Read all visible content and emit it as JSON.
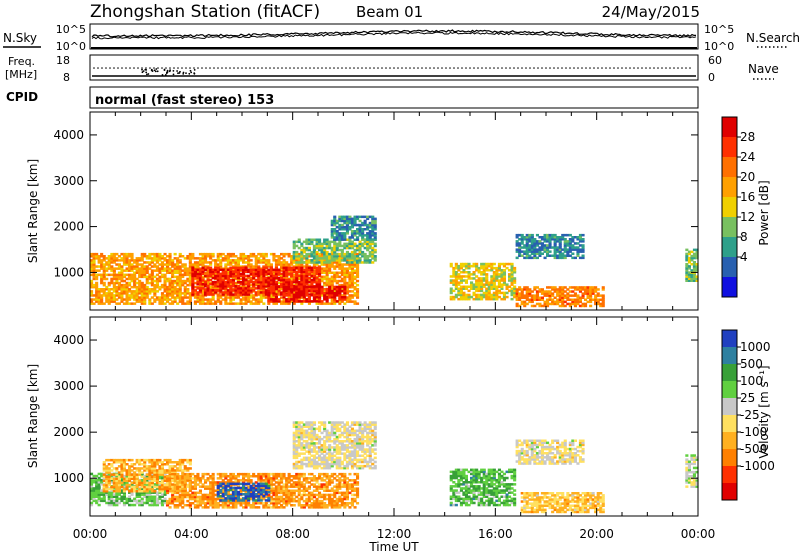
{
  "header": {
    "station": "Zhongshan Station (fitACF)",
    "beam": "Beam 01",
    "date": "24/May/2015"
  },
  "noise_panel": {
    "left_label": "N.Sky",
    "right_label": "N.Search",
    "left_ticks": [
      "10^5",
      "10^0"
    ],
    "right_ticks": [
      "10^5",
      "10^0"
    ]
  },
  "freq_panel": {
    "left_label_1": "Freq.",
    "left_label_2": "[MHz]",
    "right_label": "Nave",
    "left_ticks": [
      "18",
      "8"
    ],
    "right_ticks": [
      "60",
      "0"
    ]
  },
  "cpid_panel": {
    "label": "CPID",
    "text": "normal (fast stereo) 153"
  },
  "time_axis": {
    "title": "Time UT",
    "ticks": [
      "00:00",
      "04:00",
      "08:00",
      "12:00",
      "16:00",
      "20:00",
      "00:00"
    ]
  },
  "power_colorbar": {
    "title": "Power [dB]",
    "ticks": [
      "28",
      "24",
      "20",
      "16",
      "12",
      "8",
      "4"
    ],
    "colors": [
      "#e00000",
      "#ff3000",
      "#ff7000",
      "#ffa000",
      "#f0d000",
      "#78c060",
      "#2ea08a",
      "#2860b0",
      "#1010e0"
    ]
  },
  "velocity_colorbar": {
    "title": "Velocity [m s⁻¹]",
    "ticks": [
      "1000",
      "500",
      "100",
      "25",
      "-25",
      "-100",
      "-500",
      "-1000"
    ],
    "colors": [
      "#2040c0",
      "#2e80a0",
      "#38a038",
      "#60d040",
      "#c8c8c8",
      "#ffe060",
      "#ffb020",
      "#ff8000",
      "#ff3000",
      "#e00000"
    ]
  },
  "chart_data": [
    {
      "type": "heatmap",
      "title": "",
      "xlabel": "Time UT",
      "ylabel": "Slant Range [km]",
      "xlim": [
        0,
        24
      ],
      "ylim": [
        180,
        4500
      ],
      "yticks": [
        "1000",
        "2000",
        "3000",
        "4000"
      ],
      "colorbar_label": "Power [dB]",
      "color_range": [
        0,
        32
      ],
      "regions": [
        {
          "t": [
            0.0,
            10.5
          ],
          "r": [
            300,
            1400
          ],
          "value": 20
        },
        {
          "t": [
            4.0,
            9.0
          ],
          "r": [
            500,
            1100
          ],
          "value": 28
        },
        {
          "t": [
            7.0,
            10.0
          ],
          "r": [
            350,
            700
          ],
          "value": 30
        },
        {
          "t": [
            8.0,
            11.2
          ],
          "r": [
            1200,
            1700
          ],
          "value": 12
        },
        {
          "t": [
            9.5,
            11.2
          ],
          "r": [
            1700,
            2200
          ],
          "value": 8
        },
        {
          "t": [
            14.2,
            16.8
          ],
          "r": [
            400,
            1200
          ],
          "value": 16
        },
        {
          "t": [
            16.8,
            19.5
          ],
          "r": [
            1300,
            1800
          ],
          "value": 8
        },
        {
          "t": [
            16.8,
            20.3
          ],
          "r": [
            250,
            700
          ],
          "value": 22
        },
        {
          "t": [
            23.5,
            24.0
          ],
          "r": [
            800,
            1500
          ],
          "value": 12
        }
      ]
    },
    {
      "type": "heatmap",
      "title": "",
      "xlabel": "Time UT",
      "ylabel": "Slant Range [km]",
      "xlim": [
        0,
        24
      ],
      "ylim": [
        180,
        4500
      ],
      "yticks": [
        "1000",
        "2000",
        "3000",
        "4000"
      ],
      "colorbar_label": "Velocity [m s⁻¹]",
      "color_range": [
        -1000,
        1000
      ],
      "regions": [
        {
          "t": [
            0.0,
            3.0
          ],
          "r": [
            400,
            1100
          ],
          "value": 300
        },
        {
          "t": [
            0.5,
            4.0
          ],
          "r": [
            700,
            1400
          ],
          "value": -300
        },
        {
          "t": [
            3.0,
            10.5
          ],
          "r": [
            350,
            1100
          ],
          "value": -400
        },
        {
          "t": [
            5.0,
            7.0
          ],
          "r": [
            500,
            900
          ],
          "value": 800
        },
        {
          "t": [
            8.0,
            11.2
          ],
          "r": [
            1200,
            2200
          ],
          "value": 0
        },
        {
          "t": [
            14.2,
            16.8
          ],
          "r": [
            400,
            1200
          ],
          "value": 400
        },
        {
          "t": [
            16.8,
            19.5
          ],
          "r": [
            1300,
            1800
          ],
          "value": 0
        },
        {
          "t": [
            17.0,
            20.3
          ],
          "r": [
            250,
            700
          ],
          "value": -200
        },
        {
          "t": [
            23.5,
            24.0
          ],
          "r": [
            800,
            1500
          ],
          "value": 100
        }
      ]
    }
  ]
}
